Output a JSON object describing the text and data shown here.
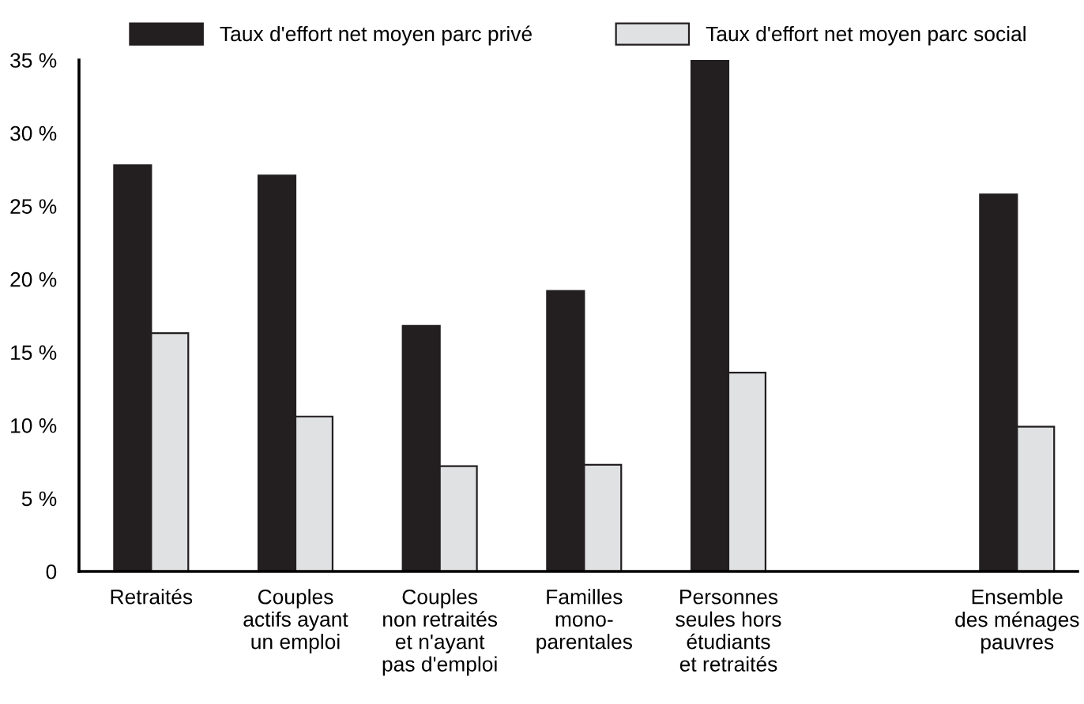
{
  "chart_data": {
    "type": "bar",
    "categories": [
      "Retraités",
      "Couples\nactifs ayant\nun emploi",
      "Couples\nnon retraités\net n'ayant\npas d'emploi",
      "Familles\nmono-\nparentales",
      "Personnes\nseules hors\nétudiants\net retraités",
      null,
      "Ensemble\ndes ménages\npauvres"
    ],
    "series": [
      {
        "name": "Taux d'effort net moyen parc privé",
        "color": "#231f20",
        "values": [
          27.8,
          27.1,
          16.8,
          19.2,
          35.0,
          null,
          25.8
        ]
      },
      {
        "name": "Taux d'effort net moyen parc social",
        "color": "#e0e1e3",
        "values": [
          16.3,
          10.6,
          7.2,
          7.3,
          13.6,
          null,
          9.9
        ]
      }
    ],
    "ylim": [
      0,
      35
    ],
    "yticks": [
      0,
      {
        "value": 5,
        "label": "5 %"
      },
      {
        "value": 10,
        "label": "10 %"
      },
      {
        "value": 15,
        "label": "15 %"
      },
      {
        "value": 20,
        "label": "20 %"
      },
      {
        "value": 25,
        "label": "25 %"
      },
      {
        "value": 30,
        "label": "30 %"
      },
      {
        "value": 35,
        "label": "35 %"
      }
    ],
    "grid": false,
    "legend": "top"
  }
}
